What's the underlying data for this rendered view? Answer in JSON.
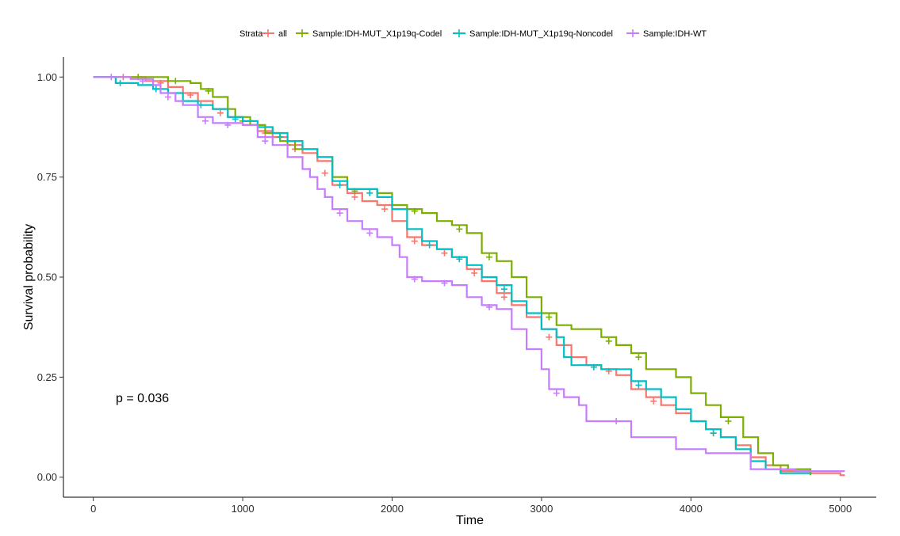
{
  "chart_data": {
    "type": "line",
    "subtype": "kaplan-meier-step",
    "xlabel": "Time",
    "ylabel": "Survival probability",
    "xlim": [
      -200,
      5240
    ],
    "ylim": [
      -0.05,
      1.05
    ],
    "x_ticks": [
      0,
      1000,
      2000,
      3000,
      4000,
      5000
    ],
    "y_ticks": [
      0.0,
      0.25,
      0.5,
      0.75,
      1.0
    ],
    "y_tick_labels": [
      "0.00",
      "0.25",
      "0.50",
      "0.75",
      "1.00"
    ],
    "grid": false,
    "legend": {
      "title": "Strata",
      "position": "top",
      "entries": [
        "all",
        "Sample:IDH-MUT_X1p19q-Codel",
        "Sample:IDH-MUT_X1p19q-Noncodel",
        "Sample:IDH-WT"
      ]
    },
    "annotation": "p = 0.036",
    "series": [
      {
        "name": "all",
        "color": "#F8766D",
        "points": [
          [
            0,
            1.0
          ],
          [
            350,
            0.99
          ],
          [
            500,
            0.975
          ],
          [
            600,
            0.96
          ],
          [
            700,
            0.94
          ],
          [
            800,
            0.92
          ],
          [
            900,
            0.9
          ],
          [
            1000,
            0.88
          ],
          [
            1100,
            0.865
          ],
          [
            1200,
            0.85
          ],
          [
            1300,
            0.83
          ],
          [
            1400,
            0.81
          ],
          [
            1500,
            0.79
          ],
          [
            1600,
            0.73
          ],
          [
            1700,
            0.71
          ],
          [
            1800,
            0.69
          ],
          [
            1900,
            0.68
          ],
          [
            2000,
            0.64
          ],
          [
            2100,
            0.6
          ],
          [
            2200,
            0.58
          ],
          [
            2300,
            0.57
          ],
          [
            2400,
            0.55
          ],
          [
            2500,
            0.52
          ],
          [
            2600,
            0.49
          ],
          [
            2700,
            0.46
          ],
          [
            2800,
            0.43
          ],
          [
            2900,
            0.4
          ],
          [
            3000,
            0.37
          ],
          [
            3100,
            0.33
          ],
          [
            3200,
            0.3
          ],
          [
            3300,
            0.28
          ],
          [
            3400,
            0.27
          ],
          [
            3500,
            0.255
          ],
          [
            3600,
            0.22
          ],
          [
            3700,
            0.2
          ],
          [
            3800,
            0.18
          ],
          [
            3900,
            0.16
          ],
          [
            4000,
            0.14
          ],
          [
            4100,
            0.12
          ],
          [
            4200,
            0.1
          ],
          [
            4300,
            0.08
          ],
          [
            4400,
            0.05
          ],
          [
            4500,
            0.03
          ],
          [
            4600,
            0.015
          ],
          [
            4800,
            0.01
          ],
          [
            5000,
            0.005
          ],
          [
            5030,
            0.005
          ]
        ],
        "censors": [
          [
            200,
            1.0
          ],
          [
            450,
            0.985
          ],
          [
            650,
            0.955
          ],
          [
            850,
            0.91
          ],
          [
            1150,
            0.86
          ],
          [
            1350,
            0.82
          ],
          [
            1550,
            0.76
          ],
          [
            1750,
            0.7
          ],
          [
            1950,
            0.67
          ],
          [
            2150,
            0.59
          ],
          [
            2350,
            0.56
          ],
          [
            2550,
            0.51
          ],
          [
            2750,
            0.45
          ],
          [
            3050,
            0.35
          ],
          [
            3450,
            0.265
          ],
          [
            3750,
            0.19
          ],
          [
            4150,
            0.11
          ]
        ]
      },
      {
        "name": "Sample:IDH-MUT_X1p19q-Codel",
        "color": "#7CAE00",
        "points": [
          [
            0,
            1.0
          ],
          [
            450,
            1.0
          ],
          [
            500,
            0.99
          ],
          [
            650,
            0.985
          ],
          [
            720,
            0.97
          ],
          [
            800,
            0.95
          ],
          [
            900,
            0.92
          ],
          [
            950,
            0.9
          ],
          [
            1050,
            0.88
          ],
          [
            1150,
            0.86
          ],
          [
            1250,
            0.84
          ],
          [
            1350,
            0.82
          ],
          [
            1500,
            0.8
          ],
          [
            1600,
            0.75
          ],
          [
            1700,
            0.72
          ],
          [
            1900,
            0.71
          ],
          [
            2000,
            0.68
          ],
          [
            2100,
            0.67
          ],
          [
            2200,
            0.66
          ],
          [
            2300,
            0.64
          ],
          [
            2400,
            0.63
          ],
          [
            2500,
            0.61
          ],
          [
            2600,
            0.56
          ],
          [
            2700,
            0.54
          ],
          [
            2800,
            0.5
          ],
          [
            2900,
            0.45
          ],
          [
            3000,
            0.41
          ],
          [
            3100,
            0.38
          ],
          [
            3200,
            0.37
          ],
          [
            3400,
            0.35
          ],
          [
            3500,
            0.33
          ],
          [
            3600,
            0.31
          ],
          [
            3700,
            0.27
          ],
          [
            3900,
            0.25
          ],
          [
            4000,
            0.21
          ],
          [
            4100,
            0.18
          ],
          [
            4200,
            0.15
          ],
          [
            4350,
            0.1
          ],
          [
            4450,
            0.06
          ],
          [
            4550,
            0.03
          ],
          [
            4650,
            0.02
          ],
          [
            4800,
            0.005
          ]
        ],
        "censors": [
          [
            300,
            1.0
          ],
          [
            550,
            0.99
          ],
          [
            770,
            0.965
          ],
          [
            1000,
            0.89
          ],
          [
            1300,
            0.83
          ],
          [
            1750,
            0.715
          ],
          [
            2150,
            0.665
          ],
          [
            2450,
            0.62
          ],
          [
            2650,
            0.55
          ],
          [
            3050,
            0.4
          ],
          [
            3450,
            0.34
          ],
          [
            3650,
            0.3
          ],
          [
            4250,
            0.14
          ]
        ]
      },
      {
        "name": "Sample:IDH-MUT_X1p19q-Noncodel",
        "color": "#00BFC4",
        "points": [
          [
            0,
            1.0
          ],
          [
            150,
            0.985
          ],
          [
            300,
            0.98
          ],
          [
            400,
            0.97
          ],
          [
            500,
            0.96
          ],
          [
            600,
            0.94
          ],
          [
            700,
            0.93
          ],
          [
            800,
            0.92
          ],
          [
            900,
            0.9
          ],
          [
            1000,
            0.89
          ],
          [
            1100,
            0.875
          ],
          [
            1200,
            0.86
          ],
          [
            1300,
            0.84
          ],
          [
            1400,
            0.82
          ],
          [
            1500,
            0.8
          ],
          [
            1600,
            0.74
          ],
          [
            1700,
            0.72
          ],
          [
            1900,
            0.7
          ],
          [
            2000,
            0.67
          ],
          [
            2100,
            0.62
          ],
          [
            2200,
            0.59
          ],
          [
            2300,
            0.57
          ],
          [
            2400,
            0.55
          ],
          [
            2500,
            0.53
          ],
          [
            2600,
            0.5
          ],
          [
            2700,
            0.48
          ],
          [
            2800,
            0.44
          ],
          [
            2900,
            0.41
          ],
          [
            3000,
            0.37
          ],
          [
            3100,
            0.35
          ],
          [
            3150,
            0.3
          ],
          [
            3200,
            0.28
          ],
          [
            3400,
            0.27
          ],
          [
            3600,
            0.24
          ],
          [
            3700,
            0.22
          ],
          [
            3800,
            0.2
          ],
          [
            3900,
            0.17
          ],
          [
            4000,
            0.14
          ],
          [
            4100,
            0.12
          ],
          [
            4200,
            0.1
          ],
          [
            4300,
            0.07
          ],
          [
            4400,
            0.04
          ],
          [
            4500,
            0.02
          ],
          [
            4600,
            0.01
          ],
          [
            4800,
            0.01
          ]
        ],
        "censors": [
          [
            180,
            0.985
          ],
          [
            420,
            0.97
          ],
          [
            720,
            0.93
          ],
          [
            950,
            0.895
          ],
          [
            1250,
            0.85
          ],
          [
            1650,
            0.73
          ],
          [
            1850,
            0.71
          ],
          [
            2250,
            0.58
          ],
          [
            2450,
            0.545
          ],
          [
            2750,
            0.47
          ],
          [
            3350,
            0.275
          ],
          [
            3650,
            0.23
          ],
          [
            4150,
            0.11
          ]
        ]
      },
      {
        "name": "Sample:IDH-WT",
        "color": "#C77CFF",
        "points": [
          [
            0,
            1.0
          ],
          [
            250,
            0.995
          ],
          [
            400,
            0.98
          ],
          [
            450,
            0.96
          ],
          [
            550,
            0.94
          ],
          [
            600,
            0.93
          ],
          [
            700,
            0.9
          ],
          [
            800,
            0.885
          ],
          [
            1000,
            0.88
          ],
          [
            1100,
            0.85
          ],
          [
            1200,
            0.83
          ],
          [
            1300,
            0.8
          ],
          [
            1400,
            0.77
          ],
          [
            1450,
            0.75
          ],
          [
            1500,
            0.72
          ],
          [
            1550,
            0.7
          ],
          [
            1600,
            0.67
          ],
          [
            1700,
            0.64
          ],
          [
            1800,
            0.62
          ],
          [
            1900,
            0.6
          ],
          [
            2000,
            0.58
          ],
          [
            2050,
            0.55
          ],
          [
            2100,
            0.5
          ],
          [
            2200,
            0.49
          ],
          [
            2400,
            0.48
          ],
          [
            2500,
            0.45
          ],
          [
            2600,
            0.43
          ],
          [
            2700,
            0.42
          ],
          [
            2800,
            0.37
          ],
          [
            2900,
            0.32
          ],
          [
            3000,
            0.27
          ],
          [
            3050,
            0.22
          ],
          [
            3150,
            0.2
          ],
          [
            3250,
            0.18
          ],
          [
            3300,
            0.14
          ],
          [
            3600,
            0.1
          ],
          [
            3900,
            0.07
          ],
          [
            4100,
            0.06
          ],
          [
            4400,
            0.02
          ],
          [
            4700,
            0.015
          ],
          [
            5030,
            0.015
          ]
        ],
        "censors": [
          [
            120,
            1.0
          ],
          [
            330,
            0.99
          ],
          [
            500,
            0.95
          ],
          [
            750,
            0.89
          ],
          [
            900,
            0.88
          ],
          [
            1150,
            0.84
          ],
          [
            1650,
            0.66
          ],
          [
            1850,
            0.61
          ],
          [
            2150,
            0.495
          ],
          [
            2350,
            0.485
          ],
          [
            2650,
            0.425
          ],
          [
            3100,
            0.21
          ],
          [
            3500,
            0.14
          ]
        ]
      }
    ]
  }
}
